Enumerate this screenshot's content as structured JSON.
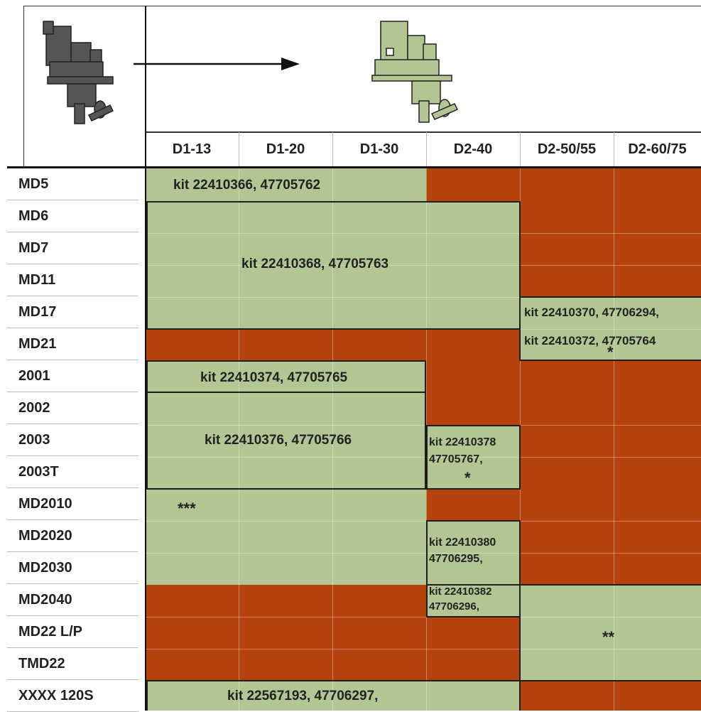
{
  "columns": [
    "D1-13",
    "D1-20",
    "D1-30",
    "D2-40",
    "D2-50/55",
    "D2-60/75"
  ],
  "rows": [
    "MD5",
    "MD6",
    "MD7",
    "MD11",
    "MD17",
    "MD21",
    "2001",
    "2002",
    "2003",
    "2003T",
    "MD2010",
    "MD2020",
    "MD2030",
    "MD2040",
    "MD22 L/P",
    "TMD22",
    "XXXX  120S"
  ],
  "kits": {
    "md5": "kit 22410366,   47705762",
    "md6_md17": "kit 22410368,   47705763",
    "md17_right": "kit 22410370, 47706294,",
    "md21_right": "kit 22410372, 47705764",
    "md21_star": "*",
    "k2001": "kit 22410374,   47705765",
    "k2002": "kit 22410376,   47705766",
    "d240_2003_line1": "kit 22410378",
    "d240_2003_line2": "47705767,",
    "d240_2003_star": "*",
    "md2010": "***",
    "md2020_line1": "kit 22410380",
    "md2020_line2": "47706295,",
    "md2040_line1": "kit 22410382",
    "md2040_line2": "47706296,",
    "md22_stars": "**",
    "xxxx": "kit 22567193,   47706297,"
  },
  "colors": {
    "compatible": "#b4c594",
    "incompatible": "#b5410d",
    "old_engine": "#555555",
    "new_engine": "#b4c594"
  },
  "icons": {
    "old_engine": "old-engine-icon",
    "new_engine": "new-engine-icon",
    "arrow": "arrow-right-icon"
  }
}
